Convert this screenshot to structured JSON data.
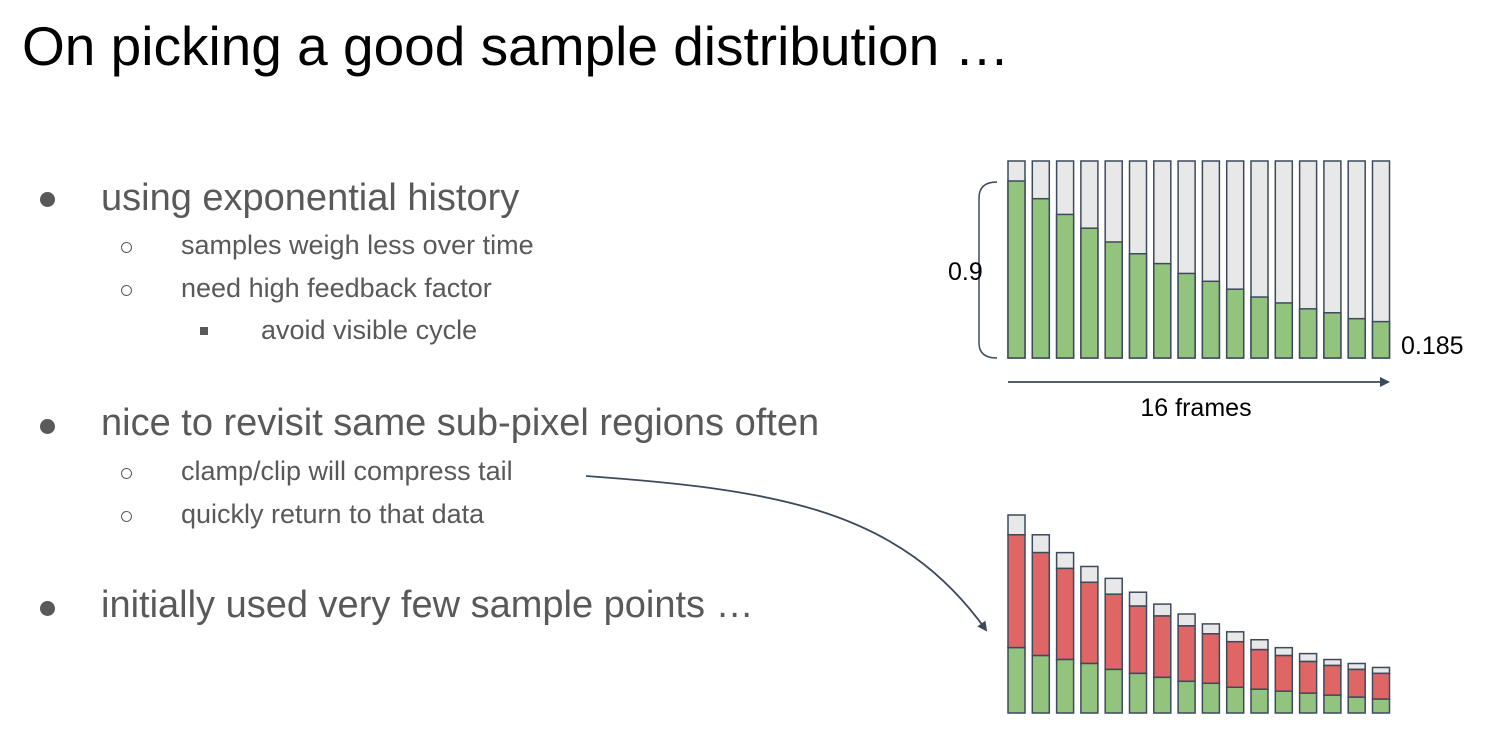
{
  "slide": {
    "title": "On picking a good sample distribution …",
    "bullets": [
      {
        "text": "using exponential history",
        "level": 1
      },
      {
        "text": "samples weigh less over time",
        "level": 2
      },
      {
        "text": "need high feedback factor",
        "level": 2
      },
      {
        "text": "avoid visible cycle",
        "level": 3
      },
      {
        "text": "nice to revisit same sub-pixel regions often",
        "level": 1
      },
      {
        "text": "clamp/clip will compress tail",
        "level": 2
      },
      {
        "text": "quickly return to that data",
        "level": 2
      },
      {
        "text": "initially used very few sample points …",
        "level": 1
      }
    ]
  },
  "top_diagram": {
    "label_start": "0.9",
    "label_end": "0.185",
    "axis_label": "16 frames",
    "bar_count": 16,
    "green_fractions": [
      0.9,
      0.81,
      0.73,
      0.66,
      0.59,
      0.53,
      0.48,
      0.43,
      0.39,
      0.35,
      0.31,
      0.28,
      0.25,
      0.23,
      0.2,
      0.185
    ],
    "colors": {
      "green": "#93c47d",
      "gray": "#e8e8e8",
      "red": "#e06666",
      "stroke": "#3d4a5c"
    }
  },
  "bottom_diagram": {
    "bar_count": 16,
    "total": [
      1.0,
      0.9,
      0.81,
      0.74,
      0.68,
      0.61,
      0.55,
      0.5,
      0.45,
      0.41,
      0.37,
      0.33,
      0.3,
      0.27,
      0.25,
      0.23
    ],
    "red_top": [
      0.9,
      0.81,
      0.73,
      0.66,
      0.6,
      0.54,
      0.49,
      0.44,
      0.4,
      0.36,
      0.32,
      0.29,
      0.26,
      0.24,
      0.22,
      0.2
    ],
    "green": [
      0.33,
      0.29,
      0.27,
      0.25,
      0.22,
      0.2,
      0.18,
      0.16,
      0.15,
      0.13,
      0.12,
      0.11,
      0.1,
      0.09,
      0.08,
      0.07
    ]
  }
}
